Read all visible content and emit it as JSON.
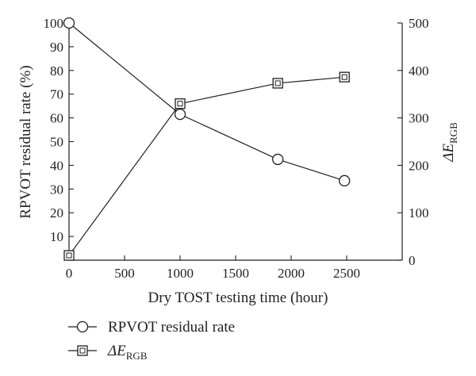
{
  "chart_data": {
    "type": "line",
    "xlabel": "Dry TOST testing time (hour)",
    "ylabel_left": "RPVOT residual rate (%)",
    "ylabel_right": {
      "base": "ΔE",
      "subscript": "RGB"
    },
    "xlim": [
      0,
      3000
    ],
    "ylim_left": [
      0,
      100
    ],
    "ylim_right": [
      0,
      500
    ],
    "x_ticks": [
      "0",
      "500",
      "1000",
      "1500",
      "2000",
      "2500"
    ],
    "y_left_ticks": [
      "10",
      "20",
      "30",
      "40",
      "50",
      "60",
      "70",
      "80",
      "90",
      "100"
    ],
    "y_right_ticks": [
      "0",
      "100",
      "200",
      "300",
      "400",
      "500"
    ],
    "grid": false,
    "legend_position": "bottom-left",
    "series": [
      {
        "name": "RPVOT residual rate",
        "axis": "left",
        "marker": "circle",
        "x": [
          0,
          1000,
          1880,
          2480
        ],
        "values": [
          100,
          61.5,
          42.5,
          33.5
        ]
      },
      {
        "name": {
          "base": "ΔE",
          "subscript": "RGB"
        },
        "axis": "right",
        "marker": "square",
        "x": [
          0,
          1000,
          1880,
          2480
        ],
        "values": [
          10,
          330,
          373,
          386
        ]
      }
    ]
  }
}
